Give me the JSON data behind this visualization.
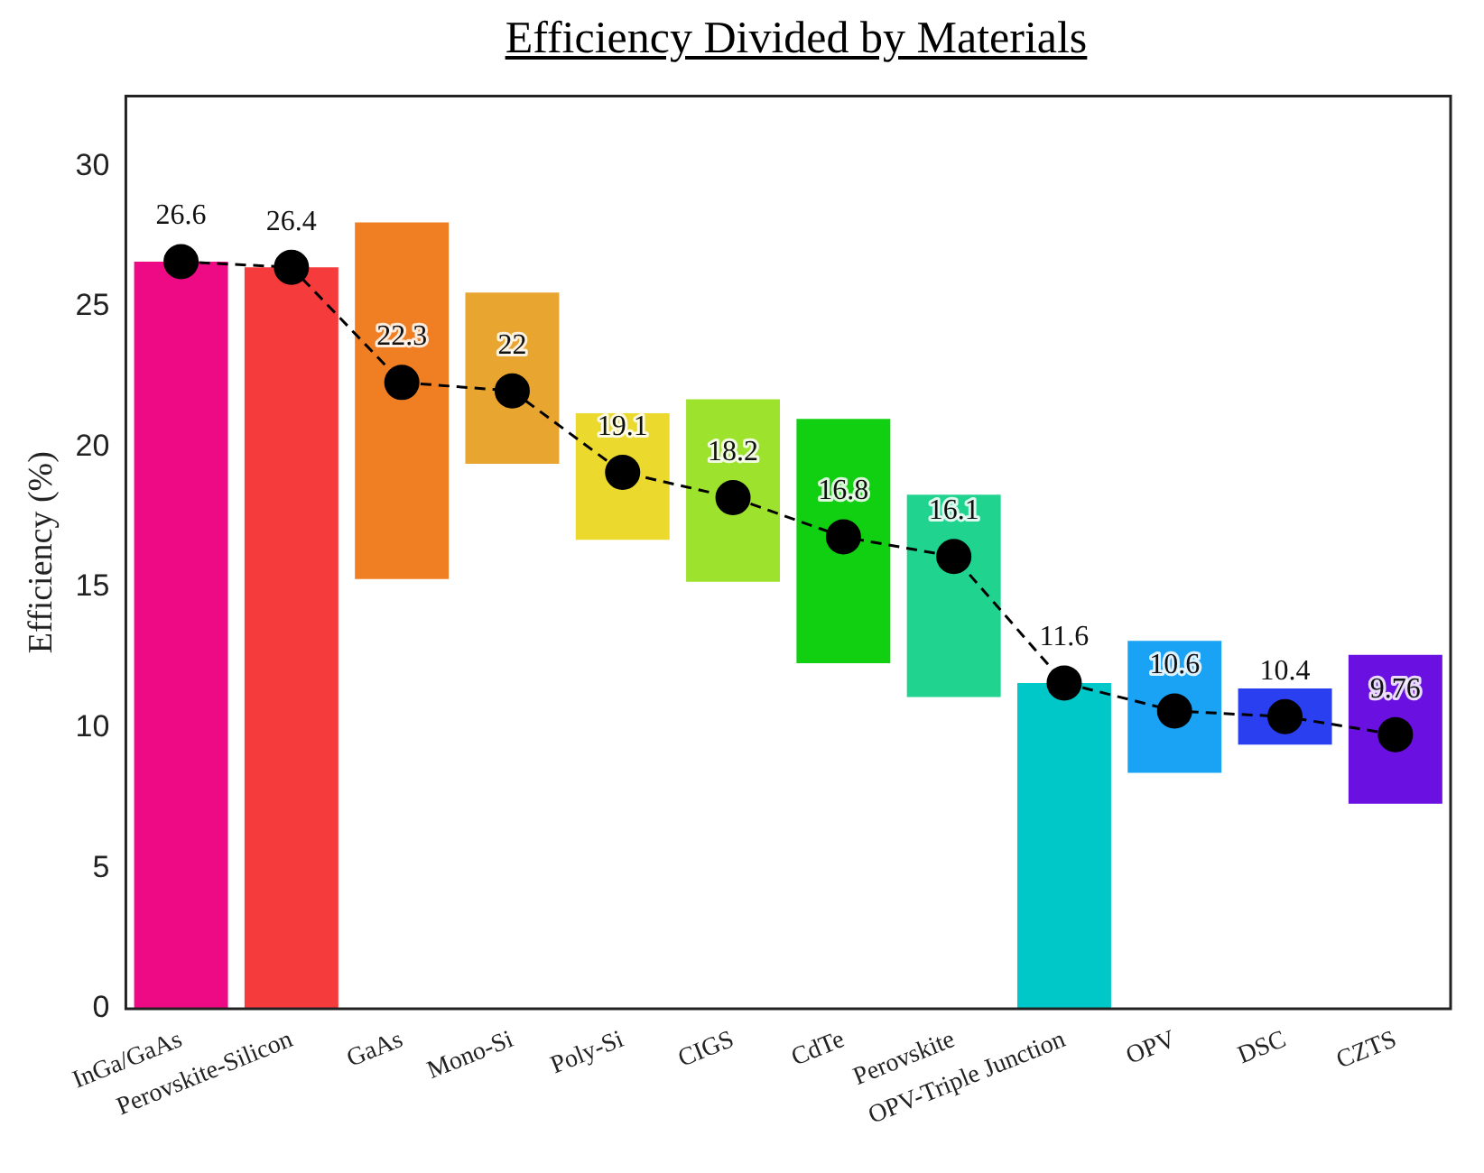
{
  "chart_data": {
    "type": "bar",
    "title": "Efficiency Divided by Materials",
    "ylabel": "Efficiency (%)",
    "categories": [
      "InGa/GaAs",
      "Perovskite-Silicon",
      "GaAs",
      "Mono-Si",
      "Poly-Si",
      "CIGS",
      "CdTe",
      "Perovskite",
      "OPV-Triple Junction",
      "OPV",
      "DSC",
      "CZTS"
    ],
    "series": [
      {
        "values": [
          26.6,
          26.4,
          12.7,
          6.1,
          4.5,
          6.5,
          8.7,
          7.2,
          11.6,
          4.7,
          2.0,
          5.3
        ],
        "base": [
          0,
          0,
          15.3,
          19.4,
          16.7,
          15.2,
          12.3,
          11.1,
          0,
          8.4,
          9.4,
          7.3
        ],
        "colors": [
          "#ee0a85",
          "#f53b3b",
          "#f07f23",
          "#e8a52f",
          "#ecd92e",
          "#9de32e",
          "#11d011",
          "#20d490",
          "#00c8c8",
          "#1aa3f5",
          "#2a40f0",
          "#6a10e0"
        ]
      },
      {
        "type": "line",
        "color": "#000000",
        "marker": "circle",
        "line_style": "dashed",
        "values": [
          26.6,
          26.4,
          22.3,
          22,
          19.1,
          18.2,
          16.8,
          16.1,
          11.6,
          10.6,
          10.4,
          9.76
        ],
        "value_labels": [
          "26.6",
          "26.4",
          "22.3",
          "22",
          "19.1",
          "18.2",
          "16.8",
          "16.1",
          "11.6",
          "10.6",
          "10.4",
          "9.76"
        ]
      }
    ],
    "ylim": [
      0,
      32.5
    ],
    "yticks": [
      0,
      5,
      10,
      15,
      20,
      25,
      30
    ],
    "grid": false,
    "legend": false
  }
}
